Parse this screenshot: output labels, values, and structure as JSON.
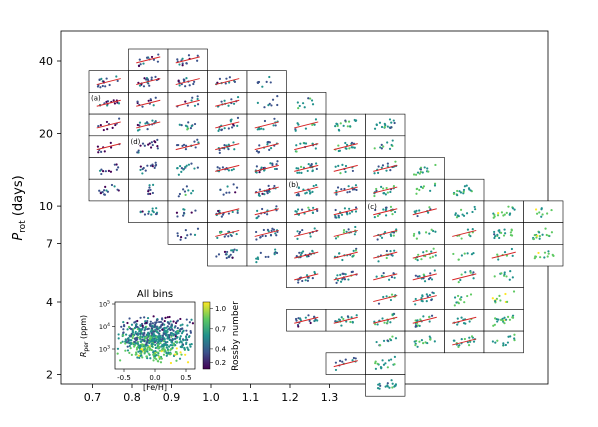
{
  "chart_data": {
    "type": "scatter",
    "xlabel": "",
    "ylabel": "P_rot (days)",
    "ylabel_main": "P",
    "ylabel_sub": "rot",
    "ylabel_rest": " (days)",
    "xlim": [
      0.66,
      1.36
    ],
    "ylim_log": [
      1.6,
      50
    ],
    "yscale": "log",
    "x_ticks": [
      "0.7",
      "0.8",
      "0.9",
      "1.0",
      "1.1",
      "1.2",
      "1.3"
    ],
    "x_tick_values": [
      0.7,
      0.8,
      0.9,
      1.0,
      1.1,
      1.2,
      1.3
    ],
    "y_ticks": [
      "40",
      "20",
      "10",
      "7",
      "4",
      "2"
    ],
    "y_tick_values": [
      40,
      20,
      10,
      7,
      4,
      2
    ],
    "grid_description": "Grid of small sub-panels; each bin is one mass (x) by rotation period (y) cell. Red line shows trend where fitted.",
    "bin_x_edges": [
      0.7,
      0.75,
      0.8,
      0.85,
      0.9,
      0.95,
      1.0,
      1.05,
      1.1,
      1.15,
      1.2,
      1.25,
      1.3,
      1.35
    ],
    "bin_rows": [
      {
        "row": 0,
        "cols": [
          2,
          3
        ],
        "fit": [
          2,
          3
        ]
      },
      {
        "row": 1,
        "cols": [
          1,
          2,
          3,
          4,
          5
        ],
        "fit": [
          1,
          2,
          3,
          4
        ]
      },
      {
        "row": 2,
        "cols": [
          1,
          2,
          3,
          4,
          5,
          6
        ],
        "fit": [
          1,
          2,
          3,
          4
        ]
      },
      {
        "row": 3,
        "cols": [
          1,
          2,
          3,
          4,
          5,
          6,
          7,
          8
        ],
        "fit": [
          1,
          2,
          4,
          5,
          6
        ]
      },
      {
        "row": 4,
        "cols": [
          1,
          2,
          3,
          4,
          5,
          6,
          7,
          8
        ],
        "fit": [
          1,
          3,
          4,
          5,
          6,
          7
        ]
      },
      {
        "row": 5,
        "cols": [
          1,
          2,
          3,
          4,
          5,
          6,
          7,
          8,
          9
        ],
        "fit": [
          4,
          5,
          6,
          7,
          8
        ]
      },
      {
        "row": 6,
        "cols": [
          1,
          2,
          3,
          4,
          5,
          6,
          7,
          8,
          9,
          10
        ],
        "fit": [
          5,
          6,
          7,
          8
        ]
      },
      {
        "row": 7,
        "cols": [
          2,
          3,
          4,
          5,
          6,
          7,
          8,
          9,
          10,
          11,
          12
        ],
        "fit": [
          4,
          5,
          6,
          7,
          8,
          9
        ]
      },
      {
        "row": 8,
        "cols": [
          3,
          4,
          5,
          6,
          7,
          8,
          9,
          10,
          11,
          12
        ],
        "fit": [
          4,
          5,
          6,
          7,
          8,
          10
        ]
      },
      {
        "row": 9,
        "cols": [
          4,
          5,
          6,
          7,
          8,
          9,
          10,
          11,
          12
        ],
        "fit": [
          6,
          7,
          8,
          9,
          11
        ]
      },
      {
        "row": 10,
        "cols": [
          6,
          7,
          8,
          9,
          10,
          11
        ],
        "fit": [
          6,
          7,
          8,
          9,
          10
        ]
      },
      {
        "row": 11,
        "cols": [
          8,
          9,
          10,
          11
        ],
        "fit": [
          8,
          9
        ]
      },
      {
        "row": 12,
        "cols": [
          6,
          7,
          8,
          9,
          10,
          11
        ],
        "fit": [
          6,
          7,
          8,
          9,
          10
        ]
      },
      {
        "row": 13,
        "cols": [
          8,
          9,
          10,
          11
        ],
        "fit": [
          10
        ]
      },
      {
        "row": 14,
        "cols": [
          7,
          8
        ],
        "fit": [
          7
        ]
      },
      {
        "row": 15,
        "cols": [
          8
        ],
        "fit": []
      }
    ],
    "panel_labels": [
      {
        "text": "(a)",
        "row": 2,
        "col": 1
      },
      {
        "text": "(b)",
        "row": 6,
        "col": 6
      },
      {
        "text": "(c)",
        "row": 7,
        "col": 8
      },
      {
        "text": "(d)",
        "row": 4,
        "col": 2
      }
    ],
    "inset": {
      "title": "All bins",
      "xlabel": "[Fe/H]",
      "ylabel_main": "R",
      "ylabel_sub": "per",
      "ylabel_rest": " (ppm)",
      "x_ticks": [
        "-0.5",
        "0.0",
        "0.5"
      ],
      "x_tick_values": [
        -0.5,
        0.0,
        0.5
      ],
      "y_ticks": [
        "10",
        "10",
        "10"
      ],
      "y_tick_exponents": [
        "3",
        "4",
        "5"
      ],
      "y_tick_values": [
        3,
        4,
        5
      ],
      "colorbar_label": "Rossby number",
      "colorbar_ticks": [
        "1.0",
        "0.7",
        "0.4",
        "0.2"
      ],
      "colorbar_tick_values": [
        1.0,
        0.7,
        0.4,
        0.2
      ]
    }
  },
  "colors": {
    "fit_line": "#d62728",
    "cmap": [
      "#440154",
      "#3b528b",
      "#21918c",
      "#5ec962",
      "#fde725"
    ]
  }
}
